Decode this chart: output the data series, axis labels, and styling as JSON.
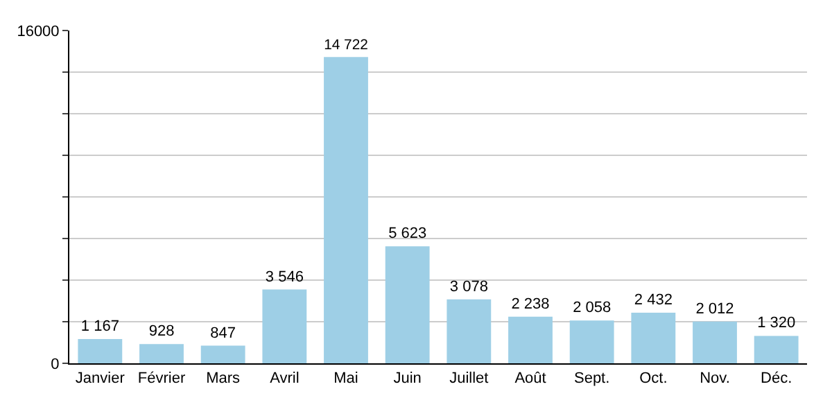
{
  "chart_data": {
    "type": "bar",
    "categories": [
      "Janvier",
      "Février",
      "Mars",
      "Avril",
      "Mai",
      "Juin",
      "Juillet",
      "Août",
      "Sept.",
      "Oct.",
      "Nov.",
      "Déc."
    ],
    "values": [
      1167,
      928,
      847,
      3546,
      14722,
      5623,
      3078,
      2238,
      2058,
      2432,
      2012,
      1320
    ],
    "value_labels": [
      "1 167",
      "928",
      "847",
      "3 546",
      "14 722",
      "5 623",
      "3 078",
      "2 238",
      "2 058",
      "2 432",
      "2 012",
      "1 320"
    ],
    "color": "#9ecfe6",
    "ylim": [
      0,
      16000
    ],
    "yticks": [
      0,
      {
        "value": 2000,
        "label": null
      },
      {
        "value": 4000,
        "label": null
      },
      {
        "value": 6000,
        "label": null
      },
      {
        "value": 8000,
        "label": null
      },
      {
        "value": 10000,
        "label": null
      },
      {
        "value": 12000,
        "label": null
      },
      {
        "value": 14000,
        "label": null
      },
      16000
    ],
    "grid": "y"
  }
}
